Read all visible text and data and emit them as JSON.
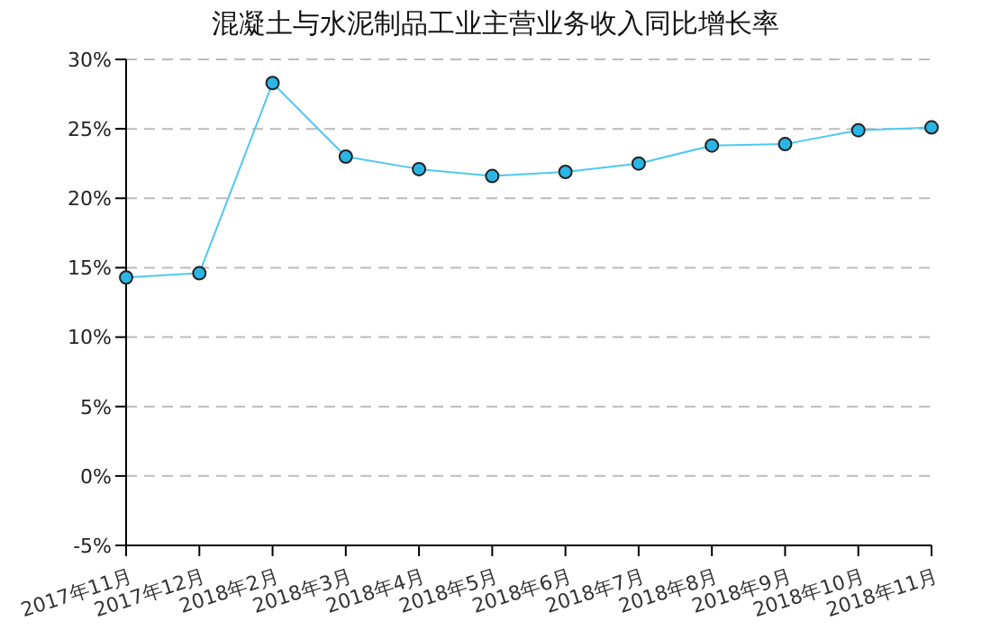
{
  "chart_data": {
    "type": "line",
    "title": "混凝土与水泥制品工业主营业务收入同比增长率",
    "categories": [
      "2017年11月",
      "2017年12月",
      "2018年2月",
      "2018年3月",
      "2018年4月",
      "2018年5月",
      "2018年6月",
      "2018年7月",
      "2018年8月",
      "2018年9月",
      "2018年10月",
      "2018年11月"
    ],
    "series": [
      {
        "color": "#4fc8f0",
        "values": [
          14.3,
          14.6,
          28.3,
          23.0,
          22.1,
          21.6,
          21.9,
          22.5,
          23.8,
          23.9,
          24.9,
          25.1
        ]
      }
    ],
    "ylim": [
      -5,
      30
    ],
    "yticks": [
      {
        "value": -5,
        "label": "-5%"
      },
      {
        "value": 0,
        "label": "0%"
      },
      {
        "value": 5,
        "label": "5%"
      },
      {
        "value": 10,
        "label": "10%"
      },
      {
        "value": 15,
        "label": "15%"
      },
      {
        "value": 20,
        "label": "20%"
      },
      {
        "value": 25,
        "label": "25%"
      },
      {
        "value": 30,
        "label": "30%"
      }
    ],
    "grid": "y",
    "marker": "circle",
    "line_style": "solid",
    "legend": false
  }
}
